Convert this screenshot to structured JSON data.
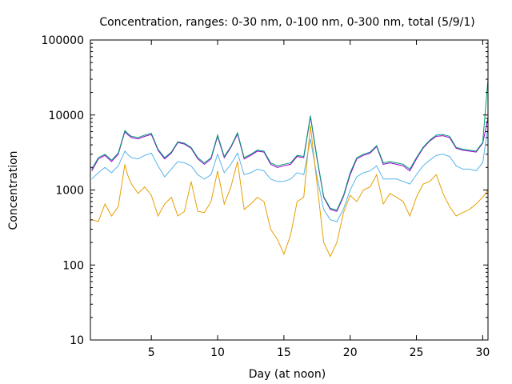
{
  "chart_data": {
    "type": "line",
    "title": "Concentration, ranges: 0-30 nm, 0-100 nm, 0-300 nm, total (5/9/1)",
    "xlabel": "Day (at noon)",
    "ylabel": "Concentration",
    "xlim": [
      0.4,
      30.4
    ],
    "ylim": [
      10,
      100000
    ],
    "yscale": "log",
    "grid": false,
    "legend": "none",
    "x_ticks": [
      5,
      10,
      15,
      20,
      25,
      30
    ],
    "x_tick_labels": [
      "5",
      "10",
      "15",
      "20",
      "25",
      "30"
    ],
    "y_ticks": [
      10,
      100,
      1000,
      10000,
      100000
    ],
    "y_tick_labels": [
      "10",
      "100",
      "1000",
      "10000",
      "100000"
    ],
    "x": [
      0.5,
      1.0,
      1.5,
      2.0,
      2.5,
      3.0,
      3.2,
      3.5,
      4.0,
      4.5,
      5.0,
      5.5,
      6.0,
      6.5,
      7.0,
      7.5,
      8.0,
      8.5,
      9.0,
      9.5,
      10.0,
      10.5,
      11.0,
      11.5,
      12.0,
      12.5,
      13.0,
      13.5,
      14.0,
      14.5,
      15.0,
      15.5,
      16.0,
      16.5,
      17.0,
      17.5,
      18.0,
      18.5,
      19.0,
      19.5,
      20.0,
      20.5,
      21.0,
      21.5,
      22.0,
      22.5,
      23.0,
      23.5,
      24.0,
      24.5,
      25.0,
      25.5,
      26.0,
      26.5,
      27.0,
      27.5,
      28.0,
      28.5,
      29.0,
      29.5,
      30.0,
      30.4
    ],
    "series": [
      {
        "color": "#9400d3",
        "values": [
          1800,
          2600,
          2900,
          2400,
          3000,
          6000,
          5500,
          5000,
          4800,
          5200,
          5500,
          3400,
          2600,
          3100,
          4300,
          4100,
          3600,
          2600,
          2200,
          2600,
          5200,
          2700,
          3700,
          5600,
          2600,
          2900,
          3300,
          3200,
          2200,
          2000,
          2100,
          2200,
          2800,
          2700,
          9500,
          2600,
          800,
          550,
          520,
          820,
          1600,
          2600,
          2900,
          3100,
          3800,
          2200,
          2300,
          2200,
          2100,
          1800,
          2600,
          3600,
          4500,
          5200,
          5300,
          5000,
          3600,
          3400,
          3300,
          3200,
          4200,
          9000
        ]
      },
      {
        "color": "#009e73",
        "values": [
          1900,
          2700,
          3000,
          2500,
          3100,
          6200,
          5700,
          5200,
          5000,
          5400,
          5700,
          3500,
          2700,
          3200,
          4400,
          4200,
          3700,
          2700,
          2300,
          2700,
          5400,
          2800,
          3800,
          5800,
          2700,
          3000,
          3400,
          3300,
          2300,
          2100,
          2200,
          2300,
          2900,
          2800,
          9800,
          2700,
          820,
          570,
          540,
          850,
          1700,
          2700,
          3000,
          3200,
          3900,
          2300,
          2400,
          2300,
          2200,
          1900,
          2700,
          3700,
          4600,
          5400,
          5500,
          5200,
          3700,
          3500,
          3400,
          3300,
          4300,
          30000
        ]
      },
      {
        "color": "#56b4e9",
        "values": [
          1400,
          1700,
          2000,
          1700,
          2100,
          3300,
          3000,
          2700,
          2600,
          2900,
          3100,
          2100,
          1500,
          1900,
          2400,
          2300,
          2100,
          1600,
          1400,
          1600,
          3000,
          1700,
          2200,
          3100,
          1600,
          1700,
          1900,
          1800,
          1400,
          1300,
          1300,
          1400,
          1700,
          1600,
          4800,
          1500,
          550,
          400,
          380,
          560,
          1000,
          1500,
          1700,
          1800,
          2100,
          1400,
          1400,
          1400,
          1300,
          1200,
          1600,
          2100,
          2500,
          2900,
          3000,
          2800,
          2100,
          1900,
          1900,
          1800,
          2300,
          7000
        ]
      },
      {
        "color": "#e69f00",
        "values": [
          400,
          380,
          650,
          450,
          600,
          2200,
          1600,
          1200,
          900,
          1100,
          850,
          450,
          650,
          800,
          450,
          520,
          1300,
          520,
          500,
          700,
          1800,
          650,
          1100,
          2400,
          550,
          650,
          800,
          700,
          300,
          220,
          140,
          250,
          700,
          800,
          7200,
          1200,
          200,
          130,
          200,
          500,
          850,
          700,
          1000,
          1100,
          1600,
          650,
          900,
          800,
          700,
          450,
          800,
          1200,
          1300,
          1600,
          900,
          600,
          450,
          500,
          550,
          650,
          800,
          1000
        ]
      }
    ]
  }
}
